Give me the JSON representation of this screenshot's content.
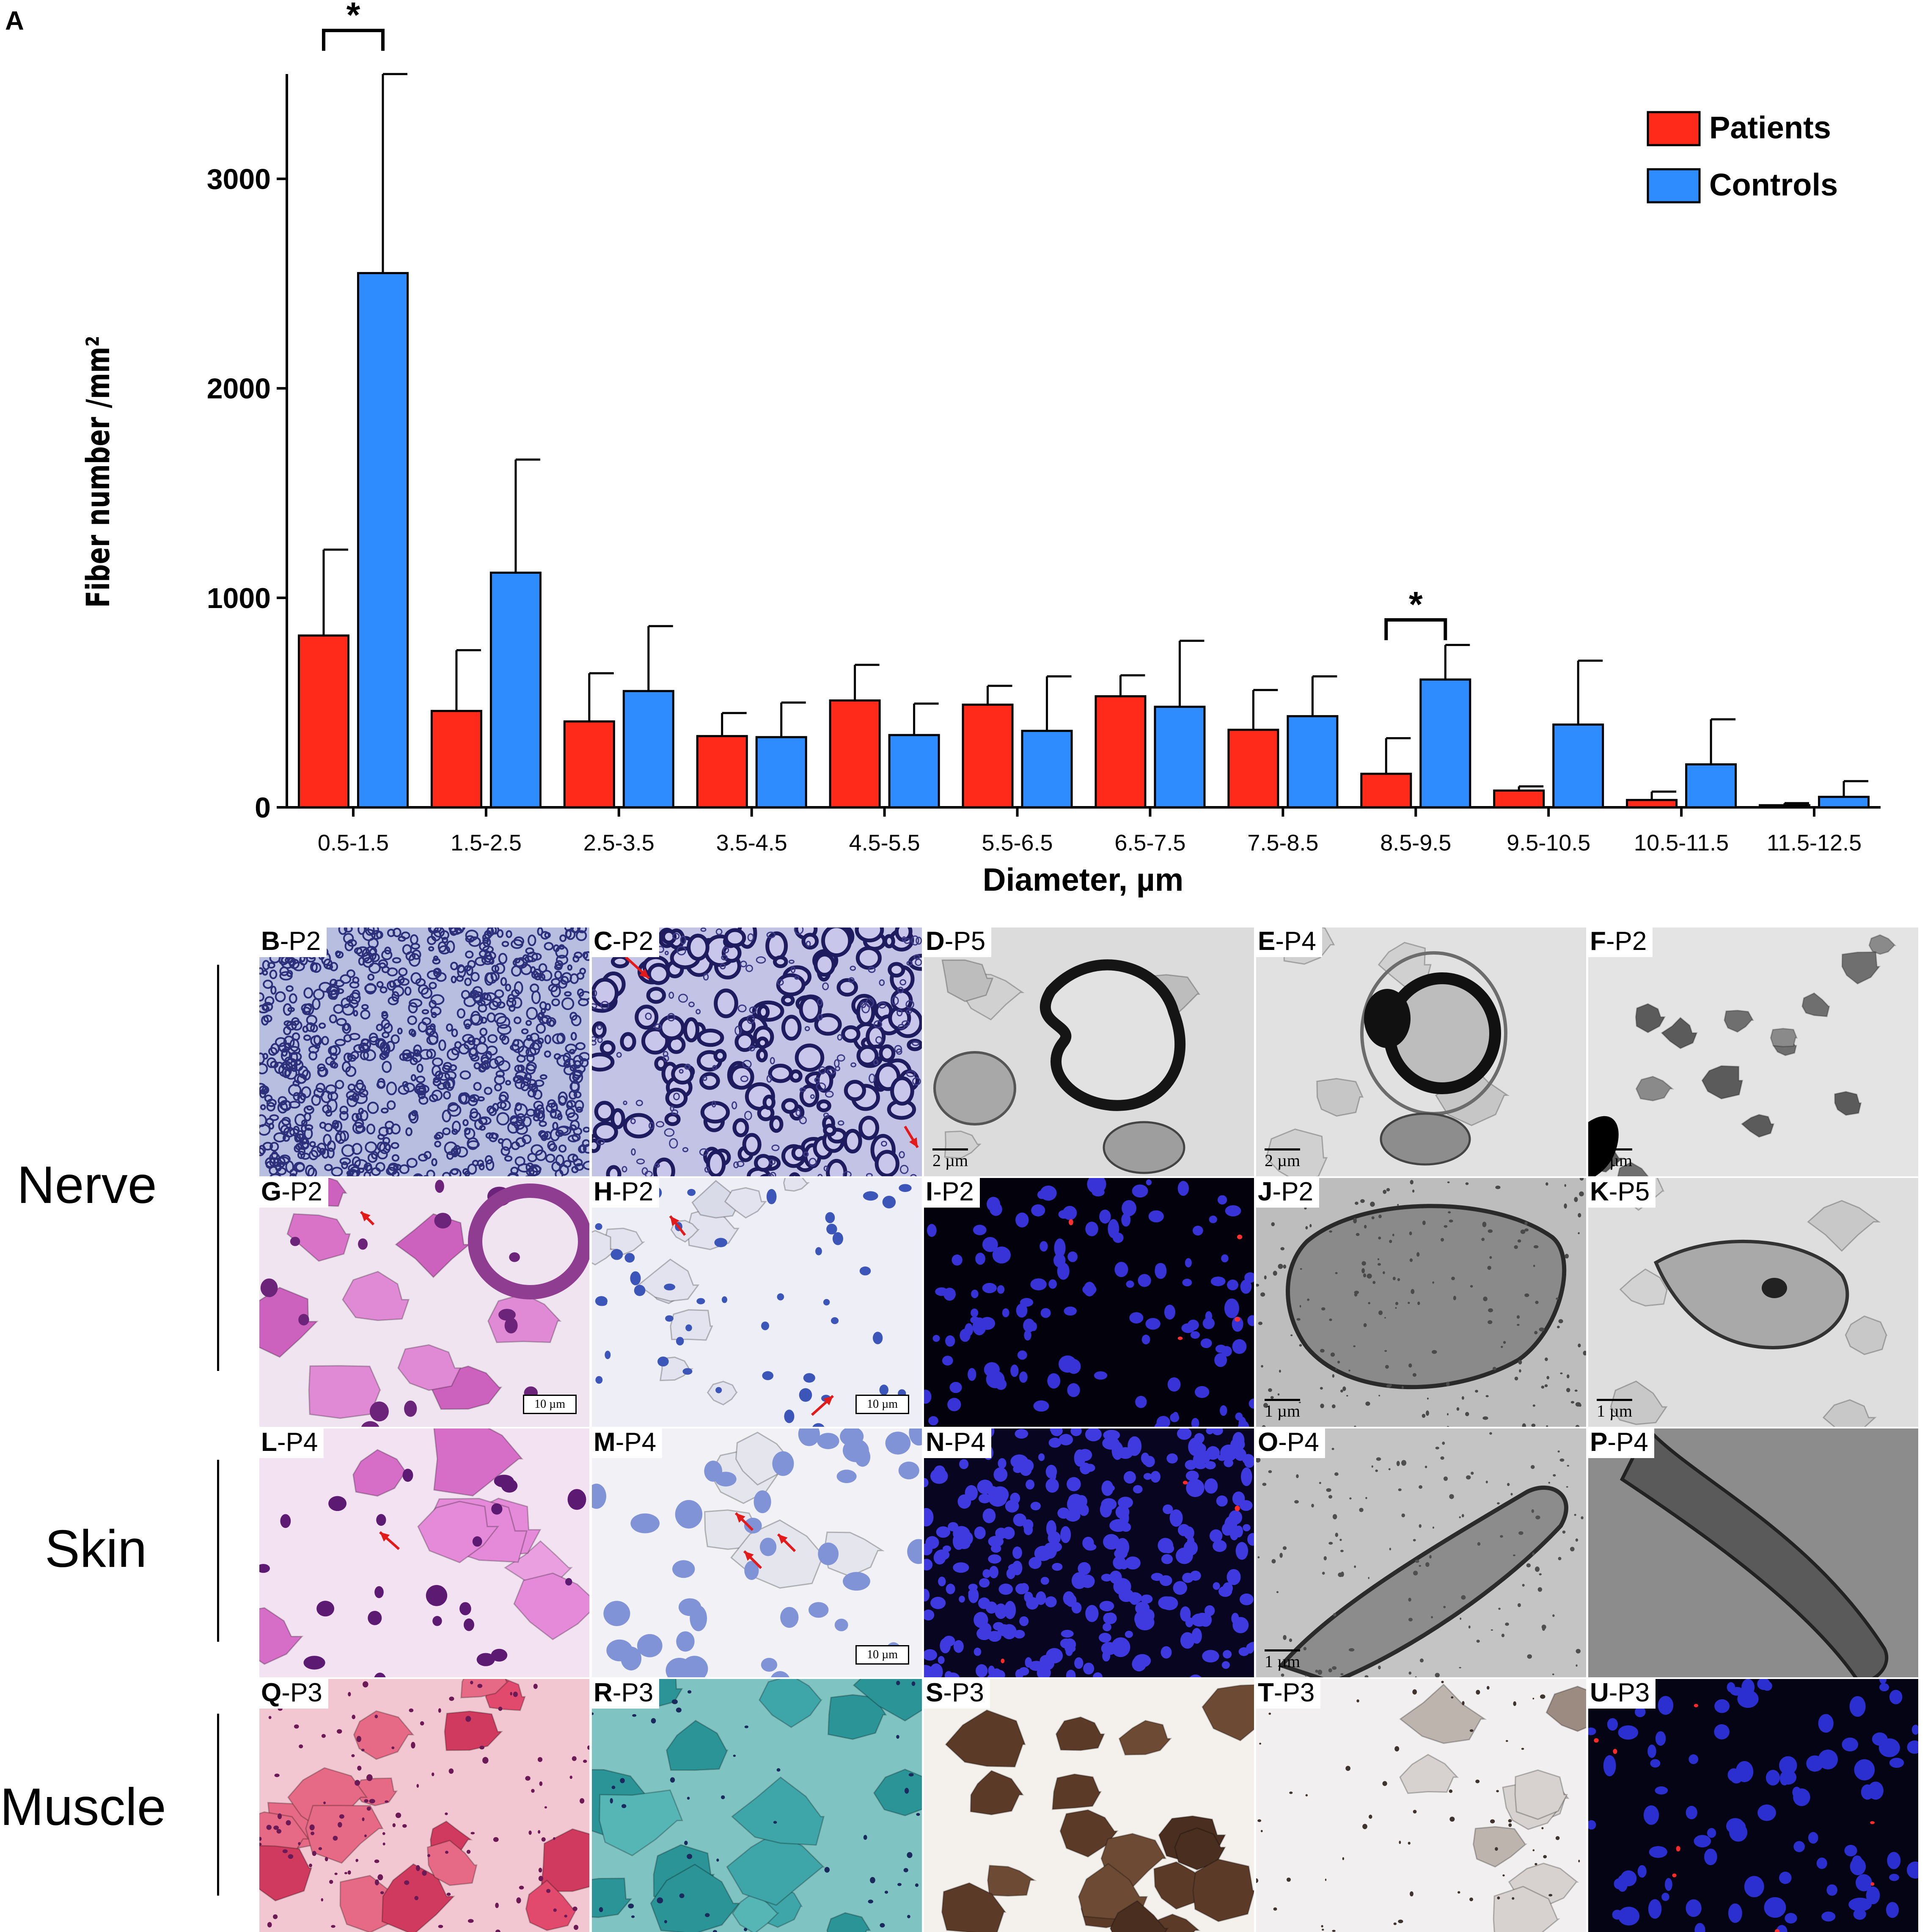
{
  "chart_data": {
    "type": "bar",
    "panel_label": "A",
    "xlabel": "Diameter, µm",
    "ylabel": "Fiber number /mm²",
    "ylim": [
      0,
      3500
    ],
    "yticks": [
      0,
      1000,
      2000,
      3000
    ],
    "categories": [
      "0.5-1.5",
      "1.5-2.5",
      "2.5-3.5",
      "3.5-4.5",
      "4.5-5.5",
      "5.5-6.5",
      "6.5-7.5",
      "7.5-8.5",
      "8.5-9.5",
      "9.5-10.5",
      "10.5-11.5",
      "11.5-12.5"
    ],
    "series": [
      {
        "name": "Patients",
        "color": "#ff2a1a",
        "values": [
          820,
          460,
          410,
          340,
          510,
          490,
          530,
          370,
          160,
          80,
          35,
          10
        ],
        "errors": [
          410,
          290,
          230,
          110,
          170,
          90,
          100,
          190,
          170,
          20,
          40,
          10
        ]
      },
      {
        "name": "Controls",
        "color": "#2f8cff",
        "values": [
          2550,
          1120,
          555,
          335,
          345,
          365,
          480,
          435,
          610,
          395,
          205,
          50
        ],
        "errors": [
          950,
          540,
          310,
          165,
          150,
          260,
          315,
          190,
          165,
          305,
          215,
          75
        ]
      }
    ],
    "legend_position": "top-right",
    "annotations": [
      {
        "text": "*",
        "category_index": 0
      },
      {
        "text": "*",
        "category_index": 8
      }
    ],
    "grid": false
  },
  "panels": [
    {
      "id": "B",
      "letter": "B",
      "suffix": "-P2",
      "type": "semithin-dense",
      "scale": ""
    },
    {
      "id": "C",
      "letter": "C",
      "suffix": "-P2",
      "type": "semithin-large",
      "scale": ""
    },
    {
      "id": "D",
      "letter": "D",
      "suffix": "-P5",
      "type": "em-fiber",
      "scale": "2 µm"
    },
    {
      "id": "E",
      "letter": "E",
      "suffix": "-P4",
      "type": "em-fiber2",
      "scale": "2 µm"
    },
    {
      "id": "F",
      "letter": "F",
      "suffix": "-P2",
      "type": "em-clusters",
      "scale": "2 µm"
    },
    {
      "id": "G",
      "letter": "G",
      "suffix": "-P2",
      "type": "he-nerve",
      "scale": "10 µm"
    },
    {
      "id": "H",
      "letter": "H",
      "suffix": "-P2",
      "type": "ihc-light",
      "scale": "10 µm"
    },
    {
      "id": "I",
      "letter": "I",
      "suffix": "-P2",
      "type": "fluor",
      "scale": ""
    },
    {
      "id": "J",
      "letter": "J",
      "suffix": "-P2",
      "type": "em-nucleus",
      "scale": "1 µm"
    },
    {
      "id": "K",
      "letter": "K",
      "suffix": "-P5",
      "type": "em-nucleus-light",
      "scale": "1 µm"
    },
    {
      "id": "L",
      "letter": "L",
      "suffix": "-P4",
      "type": "he-skin",
      "scale": ""
    },
    {
      "id": "M",
      "letter": "M",
      "suffix": "-P4",
      "type": "ihc-skin",
      "scale": "10 µm"
    },
    {
      "id": "N",
      "letter": "N",
      "suffix": "-P4",
      "type": "fluor-dense",
      "scale": ""
    },
    {
      "id": "O",
      "letter": "O",
      "suffix": "-P4",
      "type": "em-elong",
      "scale": "1 µm"
    },
    {
      "id": "P",
      "letter": "P",
      "suffix": "-P4",
      "type": "em-dark",
      "scale": ""
    },
    {
      "id": "Q",
      "letter": "Q",
      "suffix": "-P3",
      "type": "he-muscle",
      "scale": ""
    },
    {
      "id": "R",
      "letter": "R",
      "suffix": "-P3",
      "type": "gomori-muscle",
      "scale": ""
    },
    {
      "id": "S",
      "letter": "S",
      "suffix": "-P3",
      "type": "dark-muscle",
      "scale": ""
    },
    {
      "id": "T",
      "letter": "T",
      "suffix": "-P3",
      "type": "light-muscle",
      "scale": ""
    },
    {
      "id": "U",
      "letter": "U",
      "suffix": "-P3",
      "type": "fluor-muscle",
      "scale": ""
    }
  ],
  "rows": [
    {
      "label": "Nerve"
    },
    {
      "label": "Skin"
    },
    {
      "label": "Muscle"
    }
  ]
}
